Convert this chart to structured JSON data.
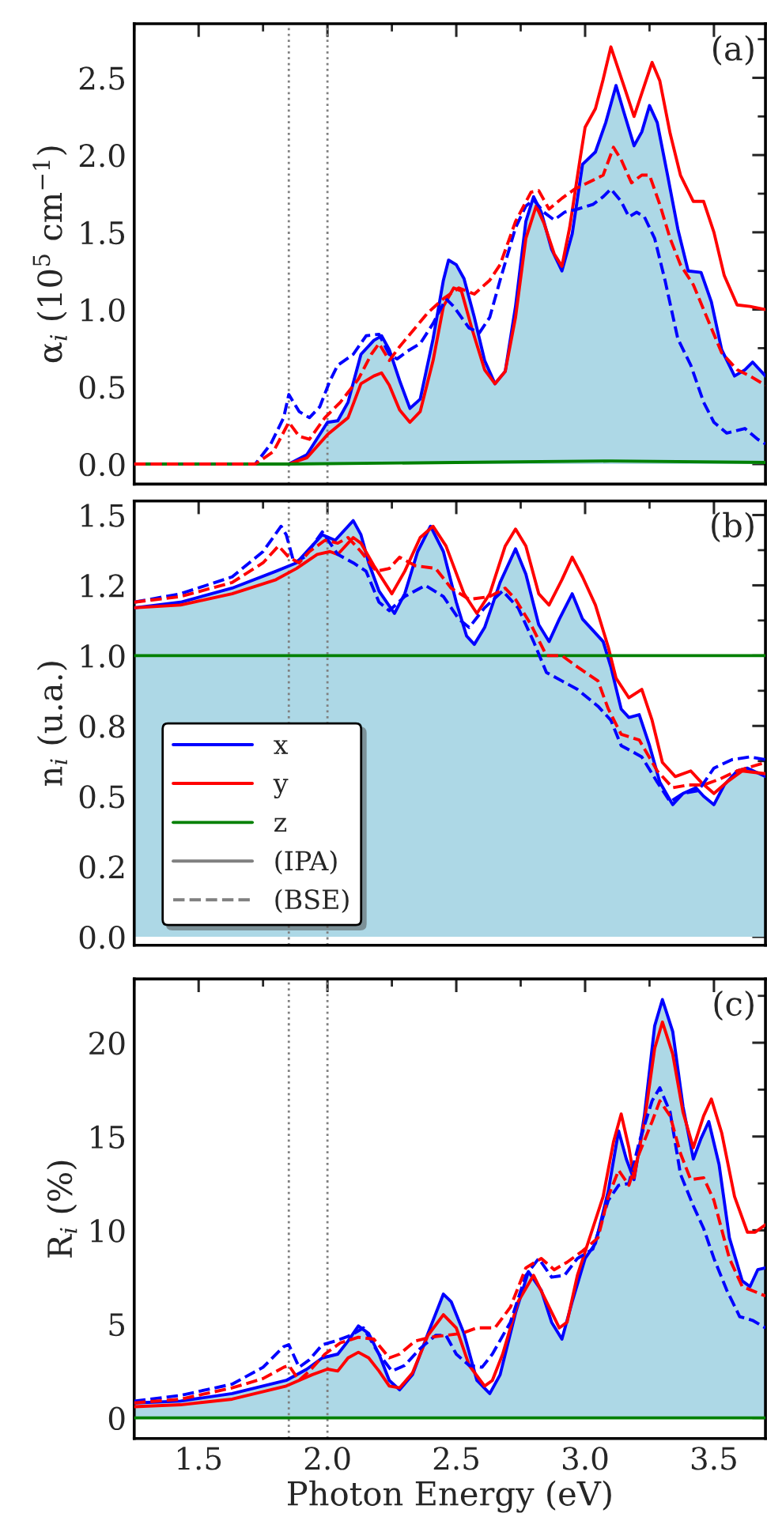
{
  "chart_data": [
    {
      "type": "line",
      "ylabel": "α$_{i}$ (10$^{5}$ cm$^{−1}$)",
      "annotations": [
        "(a)"
      ],
      "tick_labels": "y",
      "xlim": [
        1.25,
        3.7
      ],
      "xticks": [
        {
          "value": 1.5,
          "label": null
        },
        {
          "value": 2.0,
          "label": null
        },
        {
          "value": 2.5,
          "label": null
        },
        {
          "value": 3.0,
          "label": null
        },
        {
          "value": 3.5,
          "label": null
        }
      ],
      "ylim": [
        -0.13,
        2.85
      ],
      "yticks": [
        {
          "value": 0,
          "label": "0.0"
        },
        {
          "value": 0.5,
          "label": "0.5"
        },
        {
          "value": 1.0,
          "label": "1.0"
        },
        {
          "value": 1.5,
          "label": "1.5"
        },
        {
          "value": 2.0,
          "label": "2.0"
        },
        {
          "value": 2.5,
          "label": "2.5"
        }
      ],
      "ref_lines": [
        {
          "axis": "x",
          "value": 1.85,
          "color": "#808080",
          "line_style": "dotted"
        },
        {
          "axis": "x",
          "value": 2.0,
          "color": "#808080",
          "line_style": "dotted"
        }
      ],
      "series": [
        {
          "type": "area",
          "color": "#0000ff",
          "line_style": "solid",
          "x": [
            1.25,
            1.85,
            1.92,
            2.0,
            2.04,
            2.08,
            2.13,
            2.18,
            2.21,
            2.24,
            2.28,
            2.32,
            2.36,
            2.41,
            2.45,
            2.47,
            2.5,
            2.53,
            2.57,
            2.61,
            2.65,
            2.69,
            2.73,
            2.77,
            2.8,
            2.83,
            2.87,
            2.91,
            2.95,
            2.99,
            3.04,
            3.08,
            3.12,
            3.15,
            3.19,
            3.22,
            3.25,
            3.28,
            3.32,
            3.36,
            3.4,
            3.45,
            3.49,
            3.53,
            3.58,
            3.62,
            3.65,
            3.7
          ],
          "values": [
            0,
            0,
            0.06,
            0.27,
            0.28,
            0.4,
            0.71,
            0.8,
            0.83,
            0.74,
            0.54,
            0.36,
            0.42,
            0.81,
            1.19,
            1.32,
            1.29,
            1.2,
            0.95,
            0.67,
            0.52,
            0.6,
            1.02,
            1.57,
            1.73,
            1.63,
            1.39,
            1.25,
            1.49,
            1.94,
            2.02,
            2.21,
            2.45,
            2.28,
            2.06,
            2.15,
            2.32,
            2.21,
            1.87,
            1.52,
            1.25,
            1.24,
            1.05,
            0.74,
            0.57,
            0.61,
            0.66,
            0.57
          ]
        },
        {
          "color": "#ff0000",
          "line_style": "solid",
          "x": [
            1.25,
            1.85,
            1.92,
            2.0,
            2.08,
            2.13,
            2.18,
            2.21,
            2.24,
            2.28,
            2.32,
            2.36,
            2.41,
            2.45,
            2.49,
            2.52,
            2.56,
            2.61,
            2.65,
            2.69,
            2.73,
            2.77,
            2.81,
            2.84,
            2.88,
            2.91,
            2.94,
            2.98,
            3.0,
            3.04,
            3.07,
            3.1,
            3.15,
            3.19,
            3.23,
            3.26,
            3.29,
            3.33,
            3.37,
            3.42,
            3.46,
            3.5,
            3.54,
            3.59,
            3.64,
            3.7
          ],
          "values": [
            0,
            0,
            0.04,
            0.19,
            0.3,
            0.52,
            0.57,
            0.59,
            0.51,
            0.35,
            0.27,
            0.34,
            0.67,
            1.02,
            1.14,
            1.12,
            0.88,
            0.61,
            0.52,
            0.6,
            0.95,
            1.46,
            1.67,
            1.56,
            1.36,
            1.28,
            1.53,
            1.97,
            2.18,
            2.3,
            2.49,
            2.7,
            2.45,
            2.25,
            2.45,
            2.6,
            2.48,
            2.14,
            1.87,
            1.7,
            1.7,
            1.5,
            1.22,
            1.03,
            1.02,
            1.0
          ]
        },
        {
          "color": "#008000",
          "line_style": "solid",
          "x": [
            1.25,
            1.85,
            2.5,
            3.1,
            3.7
          ],
          "values": [
            0,
            0,
            0.01,
            0.02,
            0.01
          ]
        },
        {
          "color": "#0000ff",
          "line_style": "dashed",
          "x": [
            1.25,
            1.72,
            1.78,
            1.83,
            1.85,
            1.89,
            1.93,
            1.97,
            2.01,
            2.04,
            2.1,
            2.15,
            2.2,
            2.24,
            2.27,
            2.31,
            2.36,
            2.41,
            2.46,
            2.49,
            2.55,
            2.59,
            2.63,
            2.67,
            2.73,
            2.77,
            2.8,
            2.84,
            2.88,
            2.92,
            2.97,
            3.03,
            3.07,
            3.1,
            3.14,
            3.17,
            3.2,
            3.23,
            3.27,
            3.31,
            3.36,
            3.41,
            3.46,
            3.5,
            3.55,
            3.62,
            3.67,
            3.7
          ],
          "values": [
            0,
            0,
            0.13,
            0.3,
            0.45,
            0.34,
            0.3,
            0.37,
            0.54,
            0.64,
            0.71,
            0.83,
            0.84,
            0.71,
            0.68,
            0.73,
            0.78,
            0.91,
            1.07,
            1.02,
            0.88,
            0.85,
            0.95,
            1.19,
            1.53,
            1.67,
            1.71,
            1.63,
            1.58,
            1.63,
            1.65,
            1.68,
            1.73,
            1.78,
            1.7,
            1.6,
            1.63,
            1.6,
            1.46,
            1.19,
            0.81,
            0.64,
            0.4,
            0.27,
            0.2,
            0.23,
            0.16,
            0.13
          ]
        },
        {
          "color": "#ff0000",
          "line_style": "dashed",
          "x": [
            1.25,
            1.72,
            1.79,
            1.85,
            1.89,
            1.93,
            1.99,
            2.05,
            2.12,
            2.17,
            2.2,
            2.24,
            2.28,
            2.33,
            2.39,
            2.45,
            2.51,
            2.57,
            2.63,
            2.67,
            2.73,
            2.79,
            2.82,
            2.86,
            2.91,
            2.96,
            3.01,
            3.07,
            3.11,
            3.14,
            3.18,
            3.22,
            3.25,
            3.29,
            3.33,
            3.37,
            3.42,
            3.47,
            3.53,
            3.59,
            3.64,
            3.7
          ],
          "values": [
            0,
            0,
            0.08,
            0.27,
            0.18,
            0.16,
            0.3,
            0.4,
            0.55,
            0.71,
            0.78,
            0.67,
            0.76,
            0.86,
            0.98,
            1.07,
            1.14,
            1.1,
            1.19,
            1.29,
            1.57,
            1.76,
            1.77,
            1.65,
            1.72,
            1.78,
            1.82,
            1.87,
            2.05,
            1.97,
            1.82,
            1.87,
            1.87,
            1.68,
            1.46,
            1.29,
            1.16,
            0.96,
            0.72,
            0.61,
            0.57,
            0.51
          ]
        }
      ]
    },
    {
      "type": "line",
      "ylabel": "n$_{i}$ (u.a.)",
      "annotations": [
        "(b)",
        "(IPA)",
        "(BSE)"
      ],
      "tick_labels": "y",
      "legend": "bottom left",
      "xlim": [
        1.25,
        3.7
      ],
      "xticks": [
        {
          "value": 1.5,
          "label": null
        },
        {
          "value": 2.0,
          "label": null
        },
        {
          "value": 2.5,
          "label": null
        },
        {
          "value": 3.0,
          "label": null
        },
        {
          "value": 3.5,
          "label": null
        }
      ],
      "ylim": [
        -0.03,
        1.55
      ],
      "yticks": [
        {
          "value": 0,
          "label": "0.0"
        },
        {
          "value": 0.25,
          "label": "0.2"
        },
        {
          "value": 0.5,
          "label": "0.5"
        },
        {
          "value": 0.75,
          "label": "0.8"
        },
        {
          "value": 1.0,
          "label": "1.0"
        },
        {
          "value": 1.25,
          "label": "1.2"
        },
        {
          "value": 1.5,
          "label": "1.5"
        }
      ],
      "ref_lines": [
        {
          "axis": "x",
          "value": 1.85,
          "color": "#808080",
          "line_style": "dotted"
        },
        {
          "axis": "x",
          "value": 2.0,
          "color": "#808080",
          "line_style": "dotted"
        }
      ],
      "series": [
        {
          "type": "area",
          "name": "x",
          "color": "#0000ff",
          "line_style": "solid",
          "x": [
            1.25,
            1.43,
            1.63,
            1.8,
            1.88,
            1.94,
            1.98,
            2.03,
            2.07,
            2.1,
            2.13,
            2.16,
            2.2,
            2.26,
            2.3,
            2.35,
            2.4,
            2.45,
            2.5,
            2.54,
            2.57,
            2.61,
            2.67,
            2.73,
            2.77,
            2.82,
            2.86,
            2.9,
            2.95,
            2.99,
            3.04,
            3.07,
            3.1,
            3.14,
            3.17,
            3.21,
            3.25,
            3.29,
            3.34,
            3.38,
            3.43,
            3.46,
            3.5,
            3.54,
            3.59,
            3.63,
            3.7
          ],
          "values": [
            1.17,
            1.19,
            1.24,
            1.3,
            1.33,
            1.39,
            1.43,
            1.41,
            1.45,
            1.48,
            1.43,
            1.33,
            1.23,
            1.15,
            1.22,
            1.37,
            1.46,
            1.37,
            1.19,
            1.07,
            1.04,
            1.1,
            1.26,
            1.38,
            1.29,
            1.11,
            1.05,
            1.13,
            1.22,
            1.13,
            1.08,
            1.05,
            0.96,
            0.81,
            0.78,
            0.79,
            0.68,
            0.55,
            0.47,
            0.51,
            0.53,
            0.5,
            0.47,
            0.54,
            0.59,
            0.6,
            0.57
          ]
        },
        {
          "name": "y",
          "color": "#ff0000",
          "line_style": "solid",
          "x": [
            1.25,
            1.43,
            1.63,
            1.8,
            1.88,
            1.96,
            2.01,
            2.04,
            2.1,
            2.13,
            2.18,
            2.25,
            2.3,
            2.36,
            2.41,
            2.46,
            2.53,
            2.58,
            2.63,
            2.69,
            2.73,
            2.77,
            2.82,
            2.86,
            2.91,
            2.95,
            2.99,
            3.04,
            3.09,
            3.12,
            3.17,
            3.22,
            3.26,
            3.3,
            3.35,
            3.41,
            3.45,
            3.5,
            3.55,
            3.61,
            3.7
          ],
          "values": [
            1.17,
            1.18,
            1.22,
            1.27,
            1.31,
            1.36,
            1.37,
            1.36,
            1.42,
            1.4,
            1.32,
            1.22,
            1.3,
            1.42,
            1.46,
            1.39,
            1.22,
            1.15,
            1.22,
            1.39,
            1.45,
            1.39,
            1.22,
            1.18,
            1.27,
            1.35,
            1.28,
            1.18,
            1.03,
            0.92,
            0.85,
            0.88,
            0.77,
            0.62,
            0.57,
            0.59,
            0.55,
            0.51,
            0.55,
            0.59,
            0.58
          ]
        },
        {
          "name": "z",
          "color": "#008000",
          "line_style": "solid",
          "x": [
            1.25,
            3.7
          ],
          "values": [
            1.0,
            1.0
          ]
        },
        {
          "color": "#0000ff",
          "line_style": "dashed",
          "x": [
            1.25,
            1.43,
            1.63,
            1.75,
            1.82,
            1.84,
            1.87,
            1.91,
            1.98,
            2.04,
            2.1,
            2.15,
            2.2,
            2.24,
            2.3,
            2.38,
            2.45,
            2.51,
            2.55,
            2.61,
            2.68,
            2.74,
            2.8,
            2.85,
            2.91,
            2.97,
            3.05,
            3.1,
            3.14,
            3.22,
            3.28,
            3.33,
            3.38,
            3.44,
            3.5,
            3.57,
            3.64,
            3.7
          ],
          "values": [
            1.19,
            1.22,
            1.28,
            1.37,
            1.46,
            1.43,
            1.33,
            1.35,
            1.44,
            1.36,
            1.33,
            1.3,
            1.19,
            1.16,
            1.21,
            1.25,
            1.21,
            1.13,
            1.1,
            1.17,
            1.23,
            1.17,
            1.05,
            0.94,
            0.91,
            0.88,
            0.82,
            0.77,
            0.68,
            0.64,
            0.55,
            0.48,
            0.51,
            0.52,
            0.6,
            0.63,
            0.64,
            0.63
          ]
        },
        {
          "color": "#ff0000",
          "line_style": "dashed",
          "x": [
            1.25,
            1.43,
            1.63,
            1.75,
            1.81,
            1.85,
            1.89,
            1.93,
            1.99,
            2.04,
            2.08,
            2.13,
            2.19,
            2.24,
            2.28,
            2.34,
            2.42,
            2.48,
            2.55,
            2.63,
            2.69,
            2.73,
            2.79,
            2.85,
            2.91,
            2.97,
            3.05,
            3.09,
            3.14,
            3.21,
            3.28,
            3.34,
            3.4,
            3.46,
            3.52,
            3.59,
            3.7
          ],
          "values": [
            1.19,
            1.21,
            1.26,
            1.33,
            1.39,
            1.35,
            1.33,
            1.37,
            1.41,
            1.4,
            1.42,
            1.37,
            1.3,
            1.31,
            1.35,
            1.32,
            1.31,
            1.24,
            1.2,
            1.21,
            1.24,
            1.2,
            1.11,
            1.0,
            1.0,
            0.96,
            0.91,
            0.81,
            0.72,
            0.7,
            0.59,
            0.53,
            0.54,
            0.54,
            0.56,
            0.59,
            0.62
          ]
        }
      ]
    },
    {
      "type": "line",
      "xlabel": "Photon Energy (eV)",
      "ylabel": "R$_{i}$ (%)",
      "annotations": [
        "(c)"
      ],
      "xlim": [
        1.25,
        3.7
      ],
      "xticks": [
        {
          "value": 1.5,
          "label": "1.5"
        },
        {
          "value": 2.0,
          "label": "2.0"
        },
        {
          "value": 2.5,
          "label": "2.5"
        },
        {
          "value": 3.0,
          "label": "3.0"
        },
        {
          "value": 3.5,
          "label": "3.5"
        }
      ],
      "ylim": [
        -1.1,
        23.4
      ],
      "yticks": [
        0,
        5,
        10,
        15,
        20
      ],
      "ref_lines": [
        {
          "axis": "x",
          "value": 1.85,
          "color": "#808080",
          "line_style": "dotted"
        },
        {
          "axis": "x",
          "value": 2.0,
          "color": "#808080",
          "line_style": "dotted"
        }
      ],
      "series": [
        {
          "type": "area",
          "color": "#0000ff",
          "line_style": "solid",
          "x": [
            1.25,
            1.43,
            1.63,
            1.84,
            1.92,
            1.98,
            2.04,
            2.08,
            2.12,
            2.16,
            2.2,
            2.24,
            2.28,
            2.33,
            2.39,
            2.45,
            2.48,
            2.53,
            2.58,
            2.63,
            2.67,
            2.73,
            2.78,
            2.83,
            2.87,
            2.91,
            2.95,
            3.0,
            3.04,
            3.09,
            3.13,
            3.16,
            3.19,
            3.23,
            3.27,
            3.3,
            3.34,
            3.38,
            3.42,
            3.45,
            3.48,
            3.52,
            3.56,
            3.61,
            3.64,
            3.67,
            3.7
          ],
          "values": [
            0.8,
            0.9,
            1.3,
            2.0,
            2.6,
            3.2,
            3.4,
            4.1,
            4.9,
            4.5,
            3.4,
            2.0,
            1.5,
            2.3,
            4.5,
            6.6,
            6.2,
            4.5,
            2.0,
            1.3,
            2.3,
            5.6,
            7.8,
            6.8,
            5.1,
            4.2,
            6.2,
            8.5,
            9.3,
            12.1,
            15.3,
            13.8,
            12.7,
            16.1,
            20.9,
            22.3,
            20.6,
            16.6,
            13.8,
            14.9,
            15.8,
            13.5,
            9.6,
            7.3,
            7.0,
            7.9,
            8.0
          ]
        },
        {
          "color": "#ff0000",
          "line_style": "solid",
          "x": [
            1.25,
            1.43,
            1.63,
            1.84,
            1.94,
            2.0,
            2.04,
            2.08,
            2.12,
            2.16,
            2.2,
            2.24,
            2.28,
            2.33,
            2.39,
            2.45,
            2.5,
            2.55,
            2.61,
            2.64,
            2.68,
            2.74,
            2.8,
            2.85,
            2.9,
            2.93,
            2.97,
            3.02,
            3.07,
            3.11,
            3.14,
            3.17,
            3.19,
            3.23,
            3.27,
            3.3,
            3.34,
            3.38,
            3.42,
            3.46,
            3.49,
            3.53,
            3.58,
            3.63,
            3.66,
            3.7
          ],
          "values": [
            0.6,
            0.7,
            1.0,
            1.7,
            2.3,
            2.6,
            2.5,
            3.2,
            3.5,
            3.2,
            2.5,
            1.7,
            1.6,
            2.4,
            4.4,
            5.5,
            4.8,
            2.8,
            1.7,
            2.0,
            3.4,
            6.2,
            7.6,
            6.2,
            4.8,
            5.1,
            7.6,
            9.7,
            11.8,
            14.7,
            16.2,
            14.4,
            12.8,
            15.8,
            19.7,
            21.1,
            19.4,
            16.3,
            14.4,
            16.1,
            17.0,
            15.2,
            11.8,
            9.9,
            9.9,
            10.3
          ]
        },
        {
          "color": "#008000",
          "line_style": "solid",
          "x": [
            1.25,
            3.7
          ],
          "values": [
            0,
            0
          ]
        },
        {
          "color": "#0000ff",
          "line_style": "dashed",
          "x": [
            1.25,
            1.43,
            1.63,
            1.75,
            1.83,
            1.85,
            1.89,
            1.93,
            1.98,
            2.03,
            2.09,
            2.14,
            2.2,
            2.25,
            2.3,
            2.36,
            2.42,
            2.46,
            2.5,
            2.55,
            2.6,
            2.64,
            2.71,
            2.77,
            2.82,
            2.87,
            2.92,
            2.97,
            3.03,
            3.09,
            3.13,
            3.17,
            3.21,
            3.26,
            3.29,
            3.33,
            3.37,
            3.42,
            3.46,
            3.5,
            3.55,
            3.6,
            3.65,
            3.7
          ],
          "values": [
            0.9,
            1.2,
            1.8,
            2.7,
            3.8,
            3.9,
            2.7,
            3.1,
            3.9,
            4.1,
            4.4,
            4.8,
            3.4,
            2.5,
            2.8,
            3.7,
            4.4,
            4.4,
            3.4,
            2.8,
            2.7,
            3.4,
            5.1,
            7.6,
            8.5,
            7.5,
            7.6,
            8.5,
            9.0,
            11.6,
            12.4,
            12.5,
            14.7,
            16.9,
            17.6,
            16.3,
            13.0,
            11.3,
            10.1,
            8.5,
            6.8,
            5.4,
            5.2,
            4.8
          ]
        },
        {
          "color": "#ff0000",
          "line_style": "dashed",
          "x": [
            1.25,
            1.43,
            1.63,
            1.75,
            1.83,
            1.85,
            1.89,
            1.93,
            1.99,
            2.05,
            2.12,
            2.18,
            2.24,
            2.28,
            2.34,
            2.4,
            2.46,
            2.52,
            2.58,
            2.65,
            2.71,
            2.77,
            2.83,
            2.88,
            2.93,
            2.99,
            3.05,
            3.09,
            3.13,
            3.17,
            3.21,
            3.26,
            3.29,
            3.33,
            3.37,
            3.41,
            3.46,
            3.5,
            3.56,
            3.61,
            3.7
          ],
          "values": [
            0.8,
            1.0,
            1.6,
            2.1,
            2.7,
            2.8,
            2.0,
            2.5,
            3.4,
            4.0,
            4.3,
            4.2,
            3.2,
            3.4,
            4.1,
            4.3,
            4.4,
            4.5,
            4.8,
            4.8,
            5.9,
            8.0,
            8.5,
            7.9,
            8.3,
            8.9,
            9.6,
            11.8,
            13.2,
            12.4,
            14.1,
            15.8,
            16.9,
            16.1,
            14.1,
            12.7,
            12.8,
            11.6,
            8.5,
            7.0,
            6.5
          ]
        }
      ]
    }
  ]
}
